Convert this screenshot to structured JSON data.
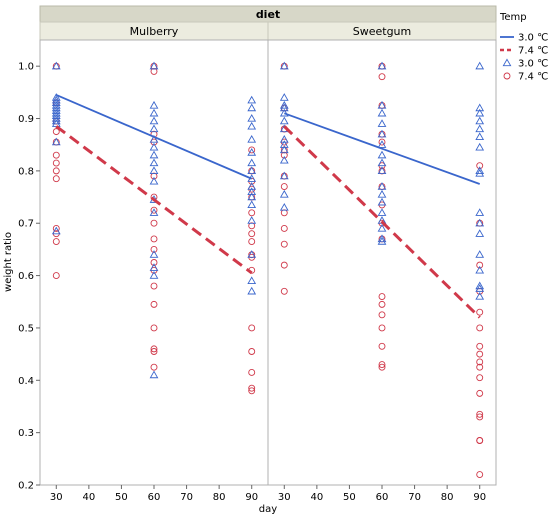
{
  "chart_data": {
    "type": "scatter",
    "title": "",
    "facet_title": "diet",
    "xlabel": "day",
    "ylabel": "weight ratio",
    "xlim": [
      25,
      95
    ],
    "ylim": [
      0.2,
      1.05
    ],
    "x_ticks": [
      30,
      40,
      50,
      60,
      70,
      80,
      90
    ],
    "y_ticks": [
      0.2,
      0.3,
      0.4,
      0.5,
      0.6,
      0.7,
      0.8,
      0.9,
      1.0
    ],
    "grid": false,
    "legend": {
      "title": "Temp",
      "position": "right",
      "entries": [
        {
          "label": "3.0 ℃",
          "kind": "line",
          "series": "3.0",
          "style": "solid"
        },
        {
          "label": "7.4 ℃",
          "kind": "line",
          "series": "7.4",
          "style": "dashed"
        },
        {
          "label": "3.0 ℃",
          "kind": "marker",
          "series": "3.0",
          "marker": "triangle"
        },
        {
          "label": "7.4 ℃",
          "kind": "marker",
          "series": "7.4",
          "marker": "circle"
        }
      ]
    },
    "colors": {
      "3.0": "#3a66cc",
      "7.4": "#d0394a"
    },
    "panels": [
      {
        "name": "Mulberry",
        "series": [
          {
            "name": "3.0 ℃",
            "key": "3.0",
            "marker": "triangle",
            "x": [
              30,
              30,
              30,
              30,
              30,
              30,
              30,
              30,
              30,
              30,
              30,
              30,
              30,
              30,
              60,
              60,
              60,
              60,
              60,
              60,
              60,
              60,
              60,
              60,
              60,
              60,
              60,
              60,
              60,
              60,
              60,
              90,
              90,
              90,
              90,
              90,
              90,
              90,
              90,
              90,
              90,
              90,
              90,
              90,
              90,
              90,
              90,
              90
            ],
            "y": [
              1.0,
              0.94,
              0.935,
              0.93,
              0.925,
              0.92,
              0.915,
              0.91,
              0.905,
              0.9,
              0.895,
              0.89,
              0.855,
              0.685,
              1.0,
              0.925,
              0.91,
              0.895,
              0.88,
              0.86,
              0.845,
              0.83,
              0.815,
              0.8,
              0.78,
              0.745,
              0.72,
              0.64,
              0.615,
              0.6,
              0.41,
              0.935,
              0.92,
              0.9,
              0.885,
              0.86,
              0.835,
              0.815,
              0.8,
              0.785,
              0.77,
              0.76,
              0.75,
              0.735,
              0.705,
              0.64,
              0.59,
              0.57
            ],
            "fit": {
              "x": [
                30,
                90
              ],
              "y": [
                0.945,
                0.785
              ]
            }
          },
          {
            "name": "7.4 ℃",
            "key": "7.4",
            "marker": "circle",
            "x": [
              30,
              30,
              30,
              30,
              30,
              30,
              30,
              30,
              30,
              30,
              30,
              30,
              30,
              60,
              60,
              60,
              60,
              60,
              60,
              60,
              60,
              60,
              60,
              60,
              60,
              60,
              60,
              60,
              60,
              60,
              60,
              90,
              90,
              90,
              90,
              90,
              90,
              90,
              90,
              90,
              90,
              90,
              90,
              90,
              90,
              90,
              90,
              90
            ],
            "y": [
              1.0,
              0.93,
              0.895,
              0.875,
              0.855,
              0.83,
              0.815,
              0.8,
              0.785,
              0.69,
              0.68,
              0.665,
              0.6,
              1.0,
              0.99,
              0.87,
              0.855,
              0.79,
              0.75,
              0.725,
              0.7,
              0.67,
              0.65,
              0.625,
              0.61,
              0.58,
              0.545,
              0.5,
              0.46,
              0.455,
              0.425,
              0.84,
              0.8,
              0.78,
              0.765,
              0.75,
              0.72,
              0.695,
              0.68,
              0.665,
              0.64,
              0.635,
              0.61,
              0.5,
              0.455,
              0.415,
              0.385,
              0.38
            ],
            "fit": {
              "x": [
                30,
                90
              ],
              "y": [
                0.885,
                0.605
              ]
            }
          }
        ]
      },
      {
        "name": "Sweetgum",
        "series": [
          {
            "name": "3.0 ℃",
            "key": "3.0",
            "marker": "triangle",
            "x": [
              30,
              30,
              30,
              30,
              30,
              30,
              30,
              30,
              30,
              30,
              30,
              30,
              30,
              30,
              60,
              60,
              60,
              60,
              60,
              60,
              60,
              60,
              60,
              60,
              60,
              60,
              60,
              60,
              60,
              60,
              60,
              90,
              90,
              90,
              90,
              90,
              90,
              90,
              90,
              90,
              90,
              90,
              90,
              90,
              90,
              90,
              90,
              90
            ],
            "y": [
              1.0,
              0.94,
              0.925,
              0.92,
              0.91,
              0.895,
              0.88,
              0.86,
              0.85,
              0.84,
              0.82,
              0.79,
              0.755,
              0.73,
              1.0,
              0.925,
              0.91,
              0.89,
              0.87,
              0.85,
              0.83,
              0.815,
              0.8,
              0.77,
              0.755,
              0.74,
              0.72,
              0.705,
              0.69,
              0.67,
              0.665,
              1.0,
              0.92,
              0.91,
              0.895,
              0.88,
              0.865,
              0.845,
              0.8,
              0.795,
              0.72,
              0.7,
              0.68,
              0.64,
              0.61,
              0.58,
              0.575,
              0.56
            ],
            "fit": {
              "x": [
                30,
                90
              ],
              "y": [
                0.91,
                0.775
              ]
            }
          },
          {
            "name": "7.4 ℃",
            "key": "7.4",
            "marker": "circle",
            "x": [
              30,
              30,
              30,
              30,
              30,
              30,
              30,
              30,
              30,
              30,
              30,
              30,
              30,
              60,
              60,
              60,
              60,
              60,
              60,
              60,
              60,
              60,
              60,
              60,
              60,
              60,
              60,
              60,
              60,
              60,
              60,
              90,
              90,
              90,
              90,
              90,
              90,
              90,
              90,
              90,
              90,
              90,
              90,
              90,
              90,
              90,
              90,
              90
            ],
            "y": [
              1.0,
              0.92,
              0.88,
              0.855,
              0.84,
              0.83,
              0.79,
              0.77,
              0.72,
              0.69,
              0.66,
              0.62,
              0.57,
              1.0,
              0.98,
              0.925,
              0.87,
              0.855,
              0.81,
              0.8,
              0.77,
              0.735,
              0.7,
              0.67,
              0.56,
              0.545,
              0.525,
              0.5,
              0.465,
              0.43,
              0.425,
              0.81,
              0.7,
              0.62,
              0.57,
              0.53,
              0.5,
              0.465,
              0.45,
              0.435,
              0.425,
              0.405,
              0.375,
              0.335,
              0.33,
              0.285,
              0.285,
              0.22
            ],
            "fit": {
              "x": [
                30,
                90
              ],
              "y": [
                0.885,
                0.52
              ]
            }
          }
        ]
      }
    ]
  }
}
